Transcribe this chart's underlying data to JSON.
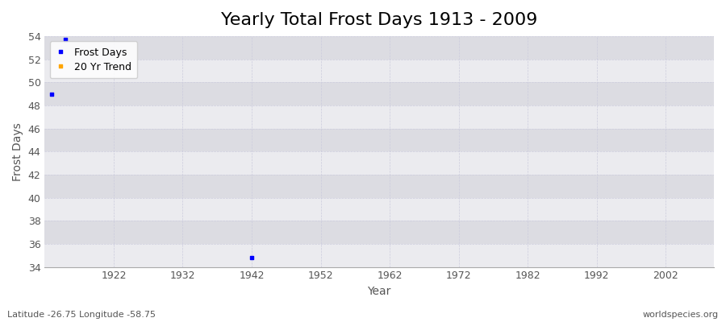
{
  "title": "Yearly Total Frost Days 1913 - 2009",
  "xlabel": "Year",
  "ylabel": "Frost Days",
  "fig_bg_color": "#ffffff",
  "plot_bg_color": "#e8e8ec",
  "band_light_color": "#ebebef",
  "band_dark_color": "#dcdce2",
  "frost_days_color": "#0000ff",
  "trend_color": "#ffa500",
  "xlim": [
    1912,
    2009
  ],
  "ylim": [
    34,
    54
  ],
  "yticks": [
    34,
    36,
    38,
    40,
    42,
    44,
    46,
    48,
    50,
    52,
    54
  ],
  "xticks": [
    1922,
    1932,
    1942,
    1952,
    1962,
    1972,
    1982,
    1992,
    2002
  ],
  "data_points": [
    {
      "year": 1913,
      "value": 49.0
    },
    {
      "year": 1915,
      "value": 53.7
    },
    {
      "year": 1942,
      "value": 34.8
    }
  ],
  "bottom_left_text": "Latitude -26.75 Longitude -58.75",
  "bottom_right_text": "worldspecies.org",
  "grid_color": "#ccccdd",
  "grid_linestyle": "--",
  "title_fontsize": 16,
  "axis_fontsize": 10,
  "tick_fontsize": 9,
  "legend_fontsize": 9,
  "tick_color": "#555555",
  "label_color": "#555555"
}
